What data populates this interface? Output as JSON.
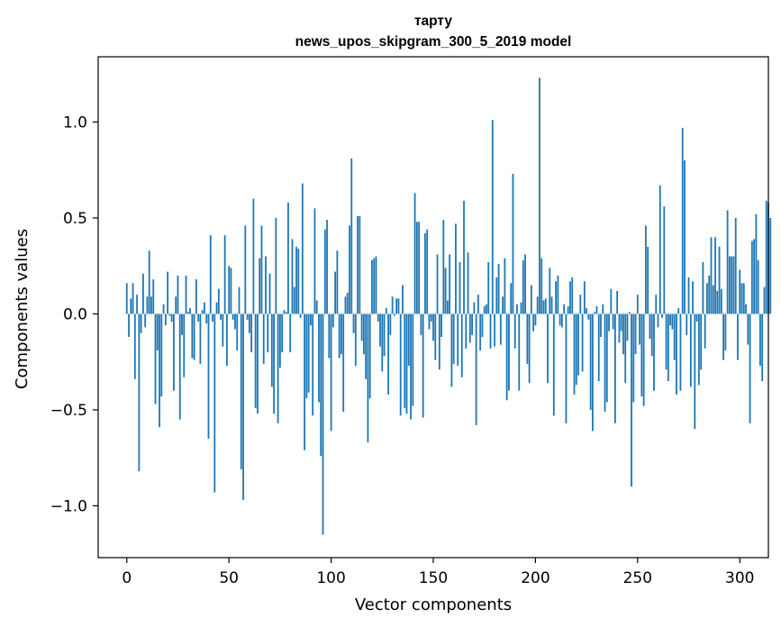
{
  "chart_data": {
    "type": "bar",
    "title_line1": "тарту",
    "title_line2": "news_upos_skipgram_300_5_2019 model",
    "xlabel": "Vector components",
    "ylabel": "Components values",
    "xlim": [
      -14,
      314
    ],
    "ylim": [
      -1.27,
      1.34
    ],
    "xticks": [
      0,
      50,
      100,
      150,
      200,
      250,
      300
    ],
    "xtick_labels": [
      "0",
      "50",
      "100",
      "150",
      "200",
      "250",
      "300"
    ],
    "yticks": [
      -1.0,
      -0.5,
      0.0,
      0.5,
      1.0
    ],
    "ytick_labels": [
      "−1.0",
      "−0.5",
      "0.0",
      "0.5",
      "1.0"
    ],
    "bar_color": "#1f77b4",
    "grid": false,
    "values": [
      0.16,
      -0.12,
      0.08,
      0.16,
      -0.34,
      0.1,
      -0.82,
      -0.1,
      0.21,
      -0.07,
      0.09,
      0.33,
      0.09,
      0.18,
      -0.47,
      -0.19,
      -0.59,
      -0.43,
      0.05,
      -0.06,
      0.22,
      -0.01,
      -0.04,
      -0.4,
      0.09,
      0.2,
      -0.55,
      -0.11,
      -0.33,
      0.2,
      0.01,
      0.03,
      -0.23,
      -0.24,
      0.18,
      -0.04,
      -0.26,
      0.02,
      0.06,
      -0.05,
      -0.65,
      0.41,
      -0.04,
      -0.93,
      0.06,
      0.13,
      -0.03,
      -0.17,
      0.41,
      -0.27,
      0.25,
      0.24,
      -0.03,
      -0.08,
      -0.19,
      0.14,
      -0.81,
      -0.97,
      0.46,
      -0.03,
      -0.1,
      -0.2,
      0.6,
      -0.49,
      -0.52,
      0.29,
      0.46,
      -0.26,
      0.3,
      -0.2,
      0.21,
      -0.38,
      -0.52,
      0.5,
      -0.57,
      -0.28,
      -0.2,
      0.02,
      0.01,
      0.58,
      -0.2,
      0.39,
      0.14,
      0.35,
      0.34,
      -0.02,
      0.68,
      -0.71,
      -0.44,
      -0.41,
      -0.06,
      -0.53,
      0.55,
      0.07,
      -0.46,
      -0.74,
      -1.15,
      0.44,
      0.49,
      -0.23,
      -0.61,
      -0.07,
      0.22,
      0.33,
      -0.23,
      -0.21,
      -0.51,
      0.09,
      0.11,
      0.46,
      0.81,
      -0.1,
      -0.27,
      0.51,
      0.51,
      -0.14,
      -0.21,
      -0.34,
      -0.67,
      -0.44,
      0.28,
      0.29,
      0.3,
      -0.04,
      -0.17,
      -0.3,
      -0.22,
      0.03,
      -0.42,
      -0.11,
      0.09,
      -0.01,
      0.08,
      0.08,
      -0.53,
      0.15,
      -0.49,
      -0.52,
      -0.27,
      -0.55,
      -0.48,
      0.63,
      0.48,
      0.48,
      -0.11,
      -0.54,
      0.42,
      0.44,
      -0.08,
      -0.04,
      -0.14,
      -0.24,
      0.31,
      -0.29,
      -0.12,
      0.49,
      0.24,
      0.07,
      0.31,
      -0.38,
      -0.26,
      0.47,
      -0.27,
      0.27,
      -0.33,
      0.59,
      -0.18,
      0.32,
      -0.15,
      -0.11,
      0.06,
      -0.58,
      0.1,
      -0.19,
      -0.12,
      0.04,
      0.05,
      0.27,
      -0.18,
      1.01,
      -0.17,
      0.19,
      0.26,
      -0.16,
      0.09,
      0.29,
      -0.45,
      -0.4,
      0.16,
      0.73,
      -0.18,
      0.05,
      -0.4,
      0.06,
      0.28,
      0.31,
      -0.26,
      -0.36,
      0.15,
      -0.09,
      -0.06,
      0.09,
      1.23,
      0.29,
      0.07,
      0.08,
      -0.36,
      0.24,
      0.09,
      -0.53,
      0.17,
      0.2,
      -0.06,
      -0.07,
      0.05,
      -0.57,
      0.04,
      0.17,
      0.19,
      -0.42,
      -0.37,
      -0.32,
      0.1,
      -0.3,
      0.17,
      0.03,
      -0.03,
      -0.5,
      -0.61,
      0.01,
      0.04,
      -0.35,
      -0.12,
      0.05,
      -0.51,
      -0.46,
      -0.09,
      0.13,
      -0.08,
      -0.57,
      0.12,
      -0.15,
      -0.09,
      -0.21,
      -0.36,
      -0.14,
      0.01,
      -0.9,
      -0.46,
      -0.21,
      0.1,
      -0.16,
      -0.43,
      -0.48,
      0.46,
      0.35,
      -0.13,
      -0.22,
      -0.4,
      0.1,
      -0.07,
      0.67,
      -0.02,
      0.56,
      -0.29,
      -0.35,
      -0.06,
      -0.08,
      -0.24,
      -0.42,
      0.03,
      -0.4,
      0.97,
      0.8,
      -0.11,
      0.19,
      -0.38,
      0.17,
      -0.6,
      -0.04,
      -0.37,
      -0.29,
      0.27,
      -0.18,
      0.16,
      0.2,
      0.4,
      0.15,
      0.4,
      0.12,
      0.35,
      0.13,
      -0.24,
      -0.19,
      0.54,
      0.3,
      0.3,
      0.3,
      0.5,
      -0.24,
      0.23,
      0.16,
      0.16,
      0.05,
      -0.16,
      -0.57,
      0.38,
      0.39,
      0.52,
      0.28,
      -0.27,
      -0.35,
      0.14,
      0.59,
      0.58,
      0.5
    ]
  }
}
